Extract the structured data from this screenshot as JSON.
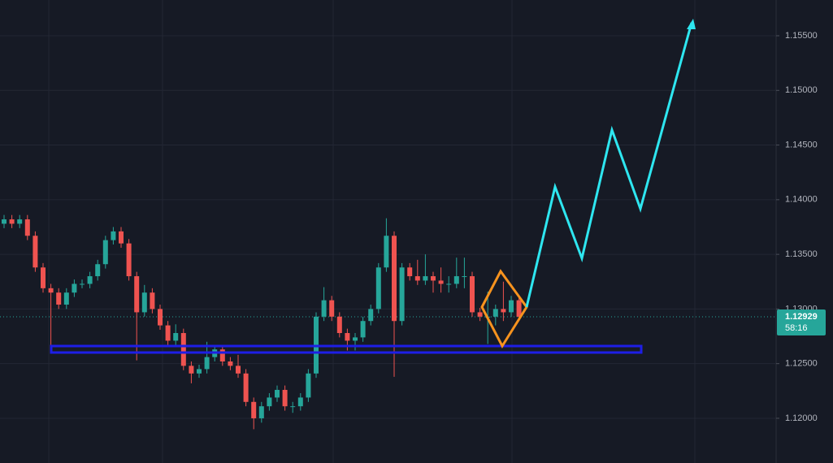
{
  "chart_data": {
    "type": "candlestick",
    "open": [
      1.1378,
      1.1382,
      1.1378,
      1.1382,
      1.1367,
      1.1338,
      1.1319,
      1.1315,
      1.1304,
      1.1315,
      1.1323,
      1.1323,
      1.133,
      1.1341,
      1.1363,
      1.1371,
      1.136,
      1.133,
      1.1297,
      1.1315,
      1.13,
      1.1285,
      1.1271,
      1.1278,
      1.1248,
      1.1241,
      1.1245,
      1.1256,
      1.1263,
      1.1252,
      1.1248,
      1.1241,
      1.1215,
      1.12,
      1.1211,
      1.1219,
      1.1226,
      1.1211,
      1.1211,
      1.1219,
      1.1241,
      1.1293,
      1.1308,
      1.1293,
      1.1278,
      1.1271,
      1.1274,
      1.1289,
      1.13,
      1.1338,
      1.1367,
      1.1289,
      1.1338,
      1.133,
      1.1326,
      1.133,
      1.1326,
      1.1323,
      1.1323,
      1.133,
      1.133,
      1.1297,
      1.1293,
      1.1293,
      1.13,
      1.1297,
      1.1308
    ],
    "high": [
      1.1386,
      1.1386,
      1.1386,
      1.1386,
      1.1371,
      1.1342,
      1.1323,
      1.1319,
      1.1319,
      1.1327,
      1.1327,
      1.1334,
      1.1345,
      1.1367,
      1.1375,
      1.1375,
      1.1364,
      1.1334,
      1.1322,
      1.1319,
      1.1304,
      1.1289,
      1.1286,
      1.1282,
      1.1252,
      1.1249,
      1.127,
      1.1267,
      1.1267,
      1.1256,
      1.1258,
      1.1245,
      1.1219,
      1.1215,
      1.1223,
      1.123,
      1.123,
      1.1215,
      1.1223,
      1.1245,
      1.1297,
      1.132,
      1.1312,
      1.1297,
      1.1282,
      1.1278,
      1.1293,
      1.1304,
      1.1342,
      1.1383,
      1.1371,
      1.1342,
      1.1342,
      1.1345,
      1.135,
      1.1334,
      1.1338,
      1.133,
      1.1347,
      1.1347,
      1.1334,
      1.1301,
      1.1316,
      1.1304,
      1.1325,
      1.1312,
      1.1312
    ],
    "low": [
      1.1374,
      1.1374,
      1.1374,
      1.1363,
      1.1334,
      1.1315,
      1.1266,
      1.13,
      1.13,
      1.1311,
      1.1319,
      1.1319,
      1.1326,
      1.1337,
      1.1359,
      1.1356,
      1.1326,
      1.1253,
      1.1293,
      1.1296,
      1.1281,
      1.1267,
      1.1267,
      1.1244,
      1.1232,
      1.1237,
      1.1241,
      1.1252,
      1.1248,
      1.1244,
      1.1237,
      1.1211,
      1.119,
      1.1196,
      1.1207,
      1.1215,
      1.1207,
      1.1205,
      1.1207,
      1.1215,
      1.1237,
      1.1289,
      1.1289,
      1.1274,
      1.1262,
      1.1262,
      1.127,
      1.1285,
      1.1296,
      1.1334,
      1.1238,
      1.1285,
      1.1326,
      1.1322,
      1.1322,
      1.1315,
      1.1315,
      1.1315,
      1.1319,
      1.1319,
      1.1293,
      1.1289,
      1.1268,
      1.1285,
      1.1289,
      1.1293,
      1.1289
    ],
    "close": [
      1.1382,
      1.1378,
      1.1382,
      1.1367,
      1.1338,
      1.1319,
      1.1315,
      1.1304,
      1.1315,
      1.1323,
      1.1323,
      1.133,
      1.1341,
      1.1363,
      1.1371,
      1.136,
      1.133,
      1.1297,
      1.1315,
      1.13,
      1.1285,
      1.1271,
      1.1278,
      1.1248,
      1.1241,
      1.1245,
      1.1256,
      1.1263,
      1.1252,
      1.1248,
      1.1241,
      1.1215,
      1.12,
      1.1211,
      1.1219,
      1.1226,
      1.1211,
      1.1211,
      1.1219,
      1.1241,
      1.1293,
      1.1308,
      1.1293,
      1.1278,
      1.1271,
      1.1274,
      1.1289,
      1.13,
      1.1338,
      1.1367,
      1.1289,
      1.1338,
      1.133,
      1.1326,
      1.133,
      1.1326,
      1.1323,
      1.1323,
      1.133,
      1.133,
      1.1297,
      1.1293,
      1.1293,
      1.13,
      1.1297,
      1.1308,
      1.12929
    ],
    "up_color": "#26a69a",
    "down_color": "#ef5350",
    "ylim": [
      1.11591,
      1.15827
    ],
    "yticks": [
      {
        "value": 1.12,
        "label": "1.12000"
      },
      {
        "value": 1.125,
        "label": "1.12500"
      },
      {
        "value": 1.13,
        "label": "1.13000"
      },
      {
        "value": 1.135,
        "label": "1.13500"
      },
      {
        "value": 1.14,
        "label": "1.14000"
      },
      {
        "value": 1.145,
        "label": "1.14500"
      },
      {
        "value": 1.15,
        "label": "1.15000"
      },
      {
        "value": 1.155,
        "label": "1.15500"
      }
    ],
    "grid": true,
    "last_price": 1.12929,
    "countdown": "58:16"
  }
}
